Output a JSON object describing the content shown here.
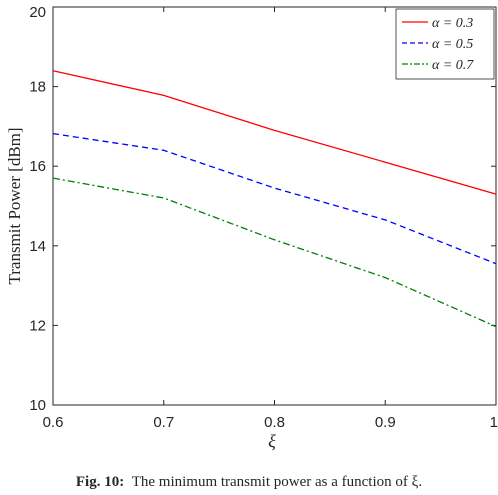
{
  "chart_data": {
    "type": "line",
    "xlabel": "ξ",
    "ylabel": "Transmit Power [dBm]",
    "xlim": [
      0.6,
      1.0
    ],
    "ylim": [
      10,
      20
    ],
    "xticks": [
      0.6,
      0.7,
      0.8,
      0.9,
      1
    ],
    "xtick_labels": [
      "0.6",
      "0.7",
      "0.8",
      "0.9",
      "1"
    ],
    "yticks": [
      10,
      12,
      14,
      16,
      18,
      20
    ],
    "ytick_labels": [
      "10",
      "12",
      "14",
      "16",
      "18",
      "20"
    ],
    "grid": false,
    "legend_position": "top-right",
    "x": [
      0.6,
      0.7,
      0.8,
      0.9,
      1.0
    ],
    "series": [
      {
        "name": "α = 0.3",
        "values": [
          18.4,
          17.78,
          16.9,
          16.1,
          15.3
        ],
        "color": "#ff0000",
        "style": "solid"
      },
      {
        "name": "α = 0.5",
        "values": [
          16.82,
          16.4,
          15.45,
          14.65,
          13.55
        ],
        "color": "#0000ff",
        "style": "dashed"
      },
      {
        "name": "α = 0.7",
        "values": [
          15.7,
          15.2,
          14.15,
          13.2,
          11.97
        ],
        "color": "#008000",
        "style": "dashdot"
      }
    ]
  },
  "caption": {
    "label": "Fig. 10:",
    "text": "The minimum transmit power as a function of ξ."
  }
}
